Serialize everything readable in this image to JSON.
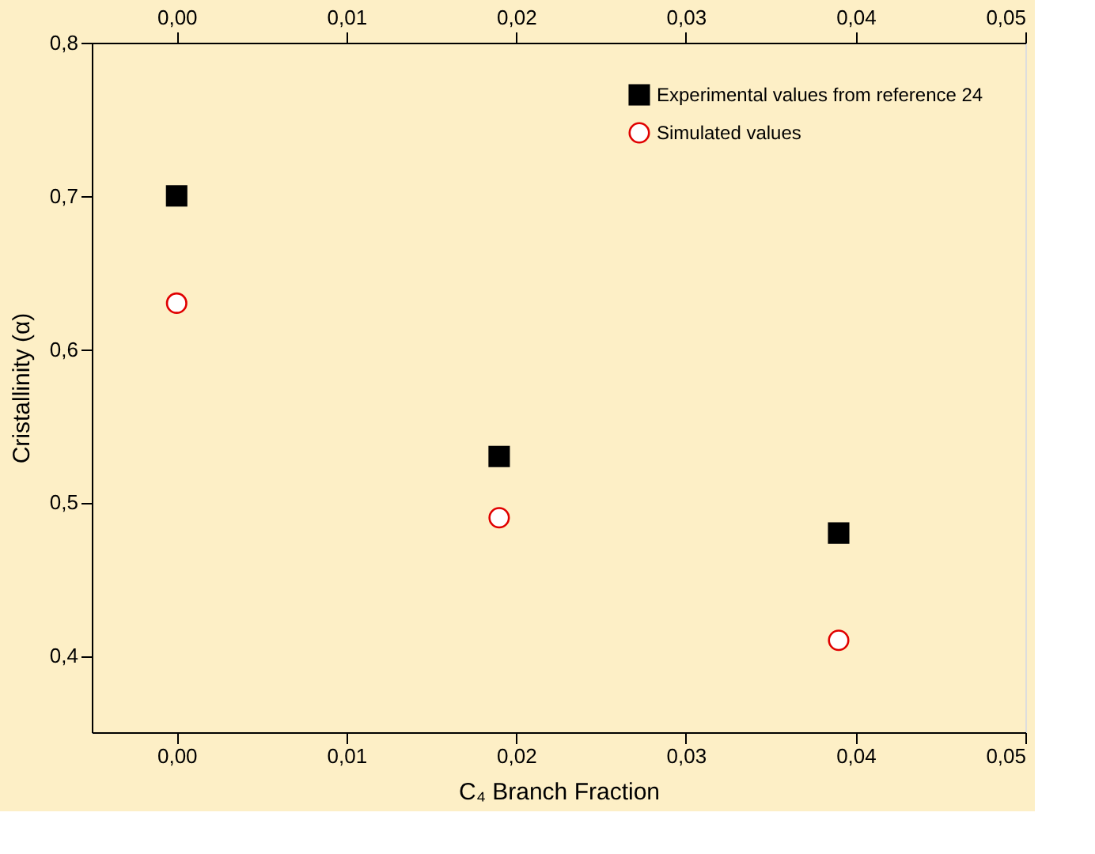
{
  "chart_data": {
    "type": "scatter",
    "xlabel": "C₄ Branch Fraction",
    "ylabel": "Cristallinity (α)",
    "x": [
      0.0,
      0.019,
      0.039
    ],
    "series": [
      {
        "name": "Experimental values from reference 24",
        "color": "#000000",
        "marker": "square",
        "values": [
          0.7,
          0.53,
          0.48
        ]
      },
      {
        "name": "Simulated values",
        "color": "#e00000",
        "marker": "circle",
        "values": [
          0.63,
          0.49,
          0.41
        ]
      }
    ],
    "xlim": [
      -0.005,
      0.05
    ],
    "xticks": [
      {
        "value": 0,
        "label": "0,00"
      },
      {
        "value": 0.01,
        "label": "0,01"
      },
      {
        "value": 0.02,
        "label": "0,02"
      },
      {
        "value": 0.03,
        "label": "0,03"
      },
      {
        "value": 0.04,
        "label": "0,04"
      },
      {
        "value": 0.05,
        "label": "0,05"
      }
    ],
    "x2lim": [
      -0.005,
      0.05
    ],
    "x2ticks": [
      {
        "value": 0,
        "label": "0,00"
      },
      {
        "value": 0.01,
        "label": "0,01"
      },
      {
        "value": 0.02,
        "label": "0,02"
      },
      {
        "value": 0.03,
        "label": "0,03"
      },
      {
        "value": 0.04,
        "label": "0,04"
      },
      {
        "value": 0.05,
        "label": "0,05"
      }
    ],
    "ylim": [
      0.35,
      0.8
    ],
    "yticks": [
      {
        "value": 0.4,
        "label": "0,4"
      },
      {
        "value": 0.5,
        "label": "0,5"
      },
      {
        "value": 0.6,
        "label": "0,6"
      },
      {
        "value": 0.7,
        "label": "0,7"
      },
      {
        "value": 0.8,
        "label": "0,8"
      }
    ],
    "grid": false,
    "legend": "top right"
  }
}
